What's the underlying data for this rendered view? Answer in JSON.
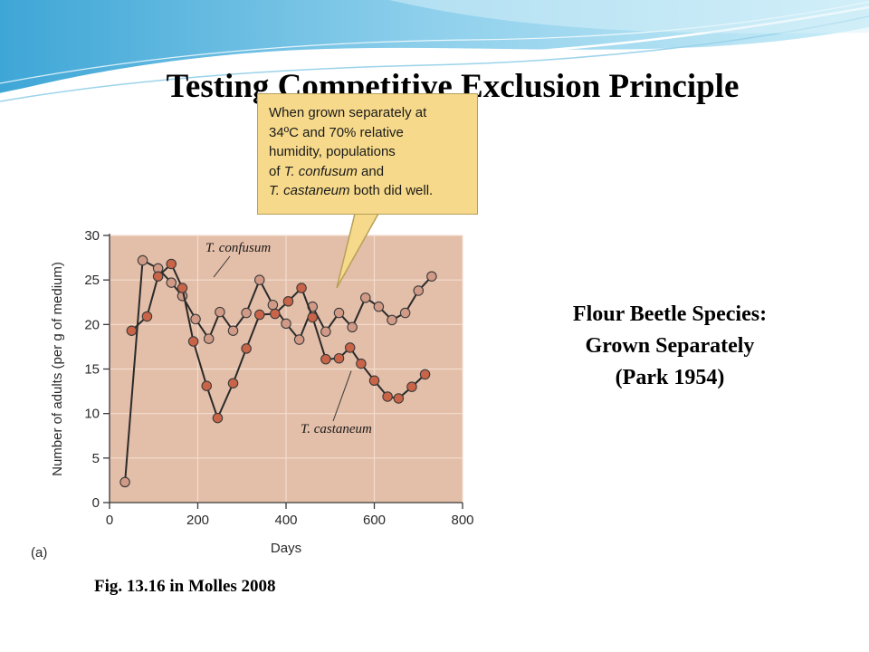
{
  "slide": {
    "title": "Testing Competitive Exclusion Principle",
    "caption_lines": [
      "Flour Beetle Species:",
      "Grown Separately",
      "(Park 1954)"
    ],
    "source": "Fig. 13.16 in Molles 2008"
  },
  "callout": {
    "lines": [
      "When grown separately at",
      "34ºC and 70% relative",
      "humidity, populations",
      "of T. confusum and",
      "T. castaneum both did well."
    ]
  },
  "colors": {
    "plot_background": "#e3bea8",
    "confusum_marker": "#d19a86",
    "castaneum_marker": "#c96448",
    "callout_fill": "#f6d98a"
  },
  "chart_data": {
    "type": "line",
    "panel_label": "(a)",
    "xlabel": "Days",
    "ylabel": "Number of adults (per g of medium)",
    "xlim": [
      0,
      800
    ],
    "ylim": [
      0,
      30
    ],
    "x_ticks": [
      0,
      200,
      400,
      600,
      800
    ],
    "y_ticks": [
      0,
      5,
      10,
      15,
      20,
      25,
      30
    ],
    "grid": true,
    "series": [
      {
        "name": "T. confusum",
        "x": [
          35,
          75,
          110,
          140,
          165,
          195,
          225,
          250,
          280,
          310,
          340,
          370,
          400,
          430,
          460,
          490,
          520,
          550,
          580,
          610,
          640,
          670,
          700,
          730
        ],
        "y": [
          2.3,
          27.2,
          26.3,
          24.7,
          23.2,
          20.6,
          18.4,
          21.4,
          19.3,
          21.3,
          25.0,
          22.2,
          20.1,
          18.3,
          22.0,
          19.2,
          21.3,
          19.7,
          23.0,
          22.0,
          20.5,
          21.3,
          23.8,
          25.4
        ]
      },
      {
        "name": "T. castaneum",
        "x": [
          50,
          85,
          110,
          140,
          165,
          190,
          220,
          245,
          280,
          310,
          340,
          375,
          405,
          435,
          460,
          490,
          520,
          545,
          570,
          600,
          630,
          655,
          685,
          715
        ],
        "y": [
          19.3,
          20.9,
          25.4,
          26.8,
          24.1,
          18.1,
          13.1,
          9.5,
          13.4,
          17.3,
          21.1,
          21.2,
          22.6,
          24.1,
          20.8,
          16.1,
          16.2,
          17.4,
          15.6,
          13.7,
          11.9,
          11.7,
          13.0,
          14.4
        ]
      }
    ]
  }
}
